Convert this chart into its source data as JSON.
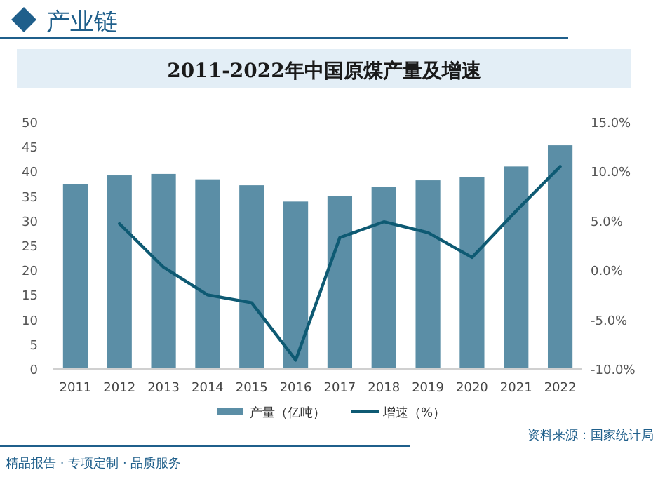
{
  "chart_data": {
    "type": "bar",
    "title": "2011-2022年中国原煤产量及增速",
    "categories": [
      "2011",
      "2012",
      "2013",
      "2014",
      "2015",
      "2016",
      "2017",
      "2018",
      "2019",
      "2020",
      "2021",
      "2022"
    ],
    "series": [
      {
        "name": "产量（亿吨）",
        "color": "#5b8ea6",
        "values": [
          37.4,
          39.2,
          39.5,
          38.4,
          37.2,
          33.9,
          35.0,
          36.8,
          38.2,
          38.8,
          41.0,
          45.3
        ]
      },
      {
        "name": "增速（%）",
        "type": "line",
        "axis": "y2",
        "color": "#0e5a73",
        "values": [
          null,
          4.7,
          0.3,
          -2.5,
          -3.3,
          -9.1,
          3.3,
          4.9,
          3.8,
          1.3,
          6.0,
          10.5
        ]
      }
    ],
    "ylim": [
      0,
      50
    ],
    "yticks": [
      0,
      5,
      10,
      15,
      20,
      25,
      30,
      35,
      40,
      45,
      50
    ],
    "y2lim": [
      -10,
      15
    ],
    "y2ticks": [
      {
        "value": -10,
        "label": "-10.0%"
      },
      {
        "value": -5,
        "label": "-5.0%"
      },
      {
        "value": 0,
        "label": "0.0%"
      },
      {
        "value": 5,
        "label": "5.0%"
      },
      {
        "value": 10,
        "label": "10.0%"
      },
      {
        "value": 15,
        "label": "15.0%"
      }
    ],
    "legend": "bottom",
    "annotations": [
      "产业链",
      "资料来源：国家统计局",
      "精品报告 · 专项定制 · 品质服务"
    ]
  }
}
